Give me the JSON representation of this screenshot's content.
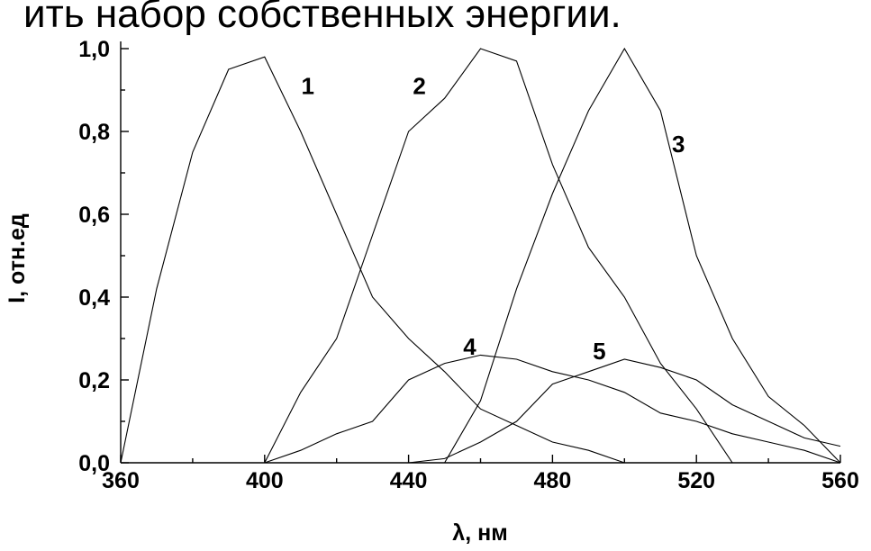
{
  "caption_fragment": "ить набор собственных энергии.",
  "chart_data": {
    "type": "line",
    "xlabel": "λ, нм",
    "ylabel": "I, отн.ед",
    "xlim": [
      360,
      560
    ],
    "ylim": [
      0,
      1.0
    ],
    "x_ticks": [
      360,
      400,
      440,
      480,
      520,
      560
    ],
    "x_tick_labels": [
      "360",
      "400",
      "440",
      "480",
      "520",
      "560"
    ],
    "y_ticks": [
      0,
      0.2,
      0.4,
      0.6,
      0.8,
      1.0
    ],
    "y_tick_labels": [
      "0,0",
      "0,2",
      "0,4",
      "0,6",
      "0,8",
      "1,0"
    ],
    "grid": false,
    "series": [
      {
        "name": "1",
        "x": [
          360,
          370,
          380,
          390,
          400,
          410,
          420,
          430,
          440,
          450,
          460,
          470,
          480,
          490,
          500
        ],
        "y": [
          0,
          0.42,
          0.75,
          0.95,
          0.98,
          0.8,
          0.6,
          0.4,
          0.3,
          0.22,
          0.13,
          0.09,
          0.05,
          0.03,
          0
        ]
      },
      {
        "name": "2",
        "x": [
          400,
          410,
          420,
          430,
          440,
          450,
          460,
          470,
          480,
          490,
          500,
          510,
          520,
          530
        ],
        "y": [
          0,
          0.17,
          0.3,
          0.55,
          0.8,
          0.88,
          1.0,
          0.97,
          0.72,
          0.52,
          0.4,
          0.24,
          0.13,
          0
        ]
      },
      {
        "name": "3",
        "x": [
          450,
          460,
          470,
          480,
          490,
          500,
          510,
          520,
          530,
          540,
          550,
          560
        ],
        "y": [
          0,
          0.15,
          0.42,
          0.65,
          0.85,
          1.0,
          0.85,
          0.5,
          0.3,
          0.16,
          0.09,
          0
        ]
      },
      {
        "name": "4",
        "x": [
          400,
          410,
          420,
          430,
          440,
          450,
          460,
          470,
          480,
          490,
          500,
          510,
          520,
          530,
          540,
          550,
          560
        ],
        "y": [
          0,
          0.03,
          0.07,
          0.1,
          0.2,
          0.24,
          0.26,
          0.25,
          0.22,
          0.2,
          0.17,
          0.12,
          0.1,
          0.07,
          0.05,
          0.03,
          0
        ]
      },
      {
        "name": "5",
        "x": [
          440,
          450,
          460,
          470,
          480,
          490,
          500,
          510,
          520,
          530,
          540,
          550,
          560
        ],
        "y": [
          0,
          0.01,
          0.05,
          0.1,
          0.19,
          0.22,
          0.25,
          0.23,
          0.2,
          0.14,
          0.1,
          0.06,
          0.04
        ]
      }
    ],
    "label_positions_data": [
      {
        "series": "1",
        "x": 412,
        "y": 0.91
      },
      {
        "series": "2",
        "x": 443,
        "y": 0.91
      },
      {
        "series": "3",
        "x": 515,
        "y": 0.77
      },
      {
        "series": "4",
        "x": 457,
        "y": 0.28
      },
      {
        "series": "5",
        "x": 493,
        "y": 0.27
      }
    ]
  }
}
